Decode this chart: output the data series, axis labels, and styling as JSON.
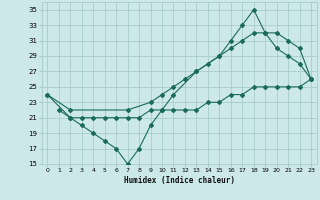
{
  "xlabel": "Humidex (Indice chaleur)",
  "bg_color": "#cce8e8",
  "grid_color": "#aacccc",
  "line_color": "#1a6b5a",
  "xlim": [
    -0.5,
    23.5
  ],
  "ylim": [
    15,
    36
  ],
  "xticks": [
    0,
    1,
    2,
    3,
    4,
    5,
    6,
    7,
    8,
    9,
    10,
    11,
    12,
    13,
    14,
    15,
    16,
    17,
    18,
    19,
    20,
    21,
    22,
    23
  ],
  "yticks": [
    15,
    17,
    19,
    21,
    23,
    25,
    27,
    29,
    31,
    33,
    35
  ],
  "line1_x": [
    0,
    2,
    3,
    4,
    5,
    6,
    7,
    8,
    9,
    10,
    11,
    13,
    15,
    16,
    17,
    18,
    19,
    20,
    21,
    22,
    23
  ],
  "line1_y": [
    24,
    21,
    20,
    19,
    18,
    17,
    15,
    17,
    20,
    22,
    24,
    27,
    29,
    31,
    33,
    35,
    32,
    30,
    29,
    28,
    26
  ],
  "line2_x": [
    0,
    2,
    7,
    9,
    10,
    11,
    12,
    13,
    14,
    15,
    16,
    17,
    18,
    19,
    20,
    21,
    22,
    23
  ],
  "line2_y": [
    24,
    22,
    22,
    23,
    24,
    25,
    26,
    27,
    28,
    29,
    30,
    31,
    32,
    32,
    32,
    31,
    30,
    26
  ],
  "line3_x": [
    1,
    2,
    3,
    4,
    5,
    6,
    7,
    8,
    9,
    10,
    11,
    12,
    13,
    14,
    15,
    16,
    17,
    18,
    19,
    20,
    21,
    22,
    23
  ],
  "line3_y": [
    22,
    21,
    21,
    21,
    21,
    21,
    21,
    21,
    22,
    22,
    22,
    22,
    22,
    23,
    23,
    24,
    24,
    25,
    25,
    25,
    25,
    25,
    26
  ]
}
